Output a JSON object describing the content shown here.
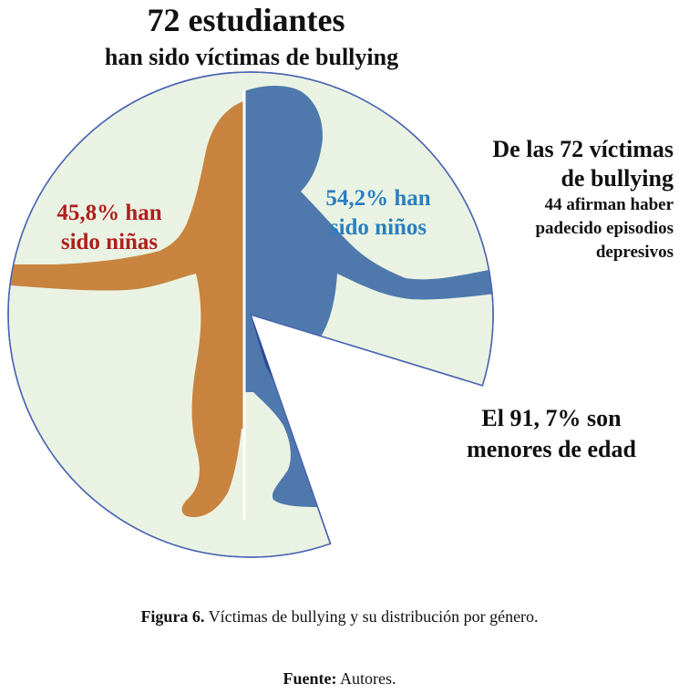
{
  "header": {
    "title": "72 estudiantes",
    "subtitle": "han sido víctimas de bullying"
  },
  "chart_data": {
    "type": "pie",
    "slices": [
      {
        "label": "45,8% han sido niñas",
        "value": 45.8,
        "color": "#c8843f"
      },
      {
        "label": "54,2% han sido niños",
        "value": 54.2,
        "color": "#4f79ad"
      }
    ],
    "highlight_value": 91.7,
    "label_colors": {
      "girls": "#b01e1e",
      "boys": "#2a7fc0"
    },
    "background_color": "#eaf3e3",
    "outline_color": "#4a64b2"
  },
  "labels": {
    "girls_line1": "45,8% han",
    "girls_line2": "sido niñas",
    "boys_line1": "54,2% han",
    "boys_line2": "sido niños"
  },
  "annotations": {
    "victims_line1": "De las 72 víctimas",
    "victims_line2": "de bullying",
    "victims_detail_line1": "44 afirman haber",
    "victims_detail_line2": "padecido episodios",
    "victims_detail_line3": "depresivos",
    "minors_line1": "El 91, 7% son",
    "minors_line2": "menores de edad"
  },
  "caption": {
    "label": "Figura 6.",
    "text": " Víctimas de bullying y su distribución por género."
  },
  "source": {
    "label": "Fuente:",
    "text": " Autores."
  }
}
